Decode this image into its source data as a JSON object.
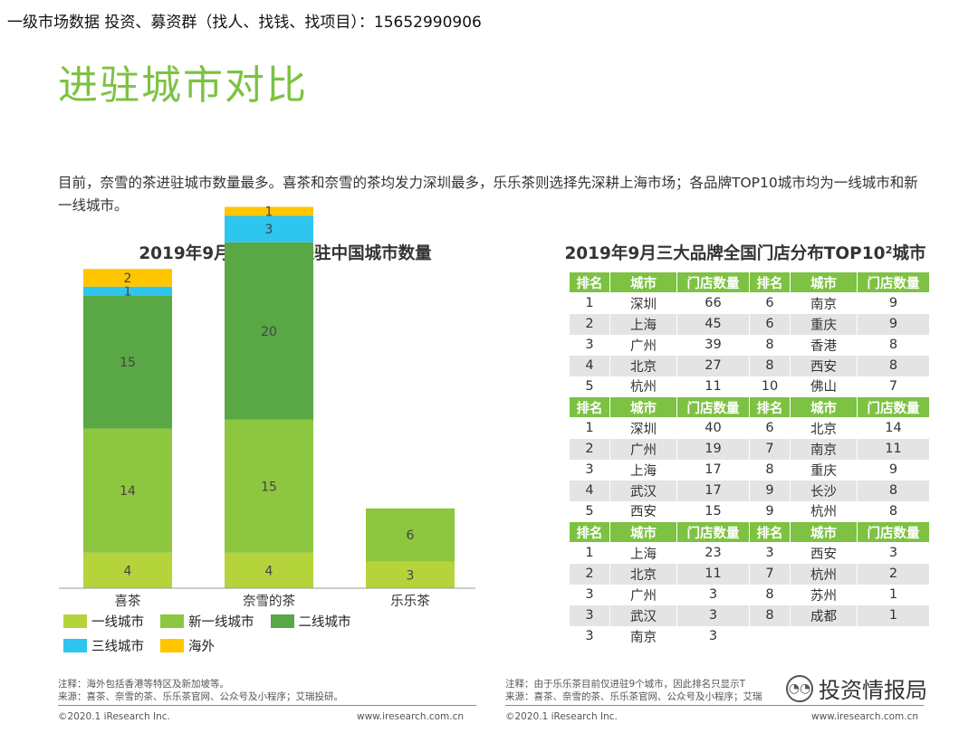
{
  "banner": "一级市场数据 投资、募资群（找人、找钱、找项目）：15652990906",
  "title": "进驻城市对比",
  "intro": "目前，奈雪的茶进驻城市数量最多。喜茶和奈雪的茶均发力深圳最多，乐乐茶则选择先深耕上海市场；各品牌TOP10城市均为一线城市和新一线城市。",
  "chart_data": {
    "type": "bar",
    "stacked": true,
    "title": "2019年9月三大品牌进驻中国城市数量",
    "categories": [
      "喜茶",
      "奈雪的茶",
      "乐乐茶"
    ],
    "series": [
      {
        "name": "一线城市",
        "color": "#b5d43b",
        "values": [
          4,
          4,
          3
        ]
      },
      {
        "name": "新一线城市",
        "color": "#8dc63f",
        "values": [
          14,
          15,
          6
        ]
      },
      {
        "name": "二线城市",
        "color": "#5aa745",
        "values": [
          15,
          20,
          0
        ]
      },
      {
        "name": "三线城市",
        "color": "#2ec5ef",
        "values": [
          1,
          3,
          0
        ]
      },
      {
        "name": "海外",
        "color": "#ffc600",
        "values": [
          2,
          1,
          0
        ]
      }
    ],
    "legend_position": "bottom",
    "grid": false
  },
  "table": {
    "title": "2019年9月三大品牌全国门店分布TOP10²城市",
    "headers": [
      "排名",
      "城市",
      "门店数量",
      "排名",
      "城市",
      "门店数量"
    ],
    "blocks": [
      {
        "rows": [
          [
            "1",
            "深圳",
            "66",
            "6",
            "南京",
            "9"
          ],
          [
            "2",
            "上海",
            "45",
            "6",
            "重庆",
            "9"
          ],
          [
            "3",
            "广州",
            "39",
            "8",
            "香港",
            "8"
          ],
          [
            "4",
            "北京",
            "27",
            "8",
            "西安",
            "8"
          ],
          [
            "5",
            "杭州",
            "11",
            "10",
            "佛山",
            "7"
          ]
        ]
      },
      {
        "rows": [
          [
            "1",
            "深圳",
            "40",
            "6",
            "北京",
            "14"
          ],
          [
            "2",
            "广州",
            "19",
            "7",
            "南京",
            "11"
          ],
          [
            "3",
            "上海",
            "17",
            "8",
            "重庆",
            "9"
          ],
          [
            "4",
            "武汉",
            "17",
            "9",
            "长沙",
            "8"
          ],
          [
            "5",
            "西安",
            "15",
            "9",
            "杭州",
            "8"
          ]
        ]
      },
      {
        "rows": [
          [
            "1",
            "上海",
            "23",
            "3",
            "西安",
            "3"
          ],
          [
            "2",
            "北京",
            "11",
            "7",
            "杭州",
            "2"
          ],
          [
            "3",
            "广州",
            "3",
            "8",
            "苏州",
            "1"
          ],
          [
            "3",
            "武汉",
            "3",
            "8",
            "成都",
            "1"
          ],
          [
            "3",
            "南京",
            "3",
            "",
            "",
            ""
          ]
        ]
      }
    ]
  },
  "footnotes": {
    "left_note": "注释：海外包括香港等特区及新加坡等。",
    "left_source": "来源：喜茶、奈雪的茶、乐乐茶官网、公众号及小程序；艾瑞投研。",
    "right_note": "注释：由于乐乐茶目前仅进驻9个城市，因此排名只显示T",
    "right_source": "来源：喜茶、奈雪的茶、乐乐茶官网、公众号及小程序；艾瑞",
    "copyright": "©2020.1 iResearch Inc.",
    "site": "www.iresearch.com.cn"
  },
  "watermark": {
    "icon": "wechat-icon",
    "text": "投资情报局"
  }
}
